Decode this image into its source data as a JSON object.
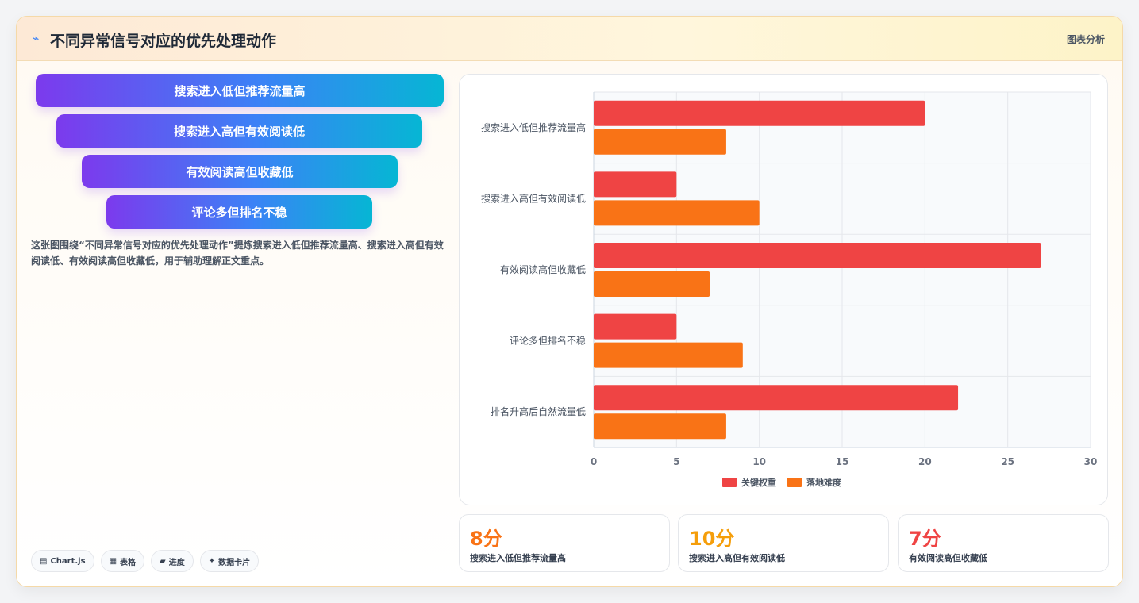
{
  "header": {
    "title_icon": "chart-icon",
    "title": "不同异常信号对应的优先处理动作",
    "tag": "图表分析"
  },
  "funnel": [
    "搜索进入低但推荐流量高",
    "搜索进入高但有效阅读低",
    "有效阅读高但收藏低",
    "评论多但排名不稳"
  ],
  "description": "这张图围绕“不同异常信号对应的优先处理动作”提炼搜索进入低但推荐流量高、搜索进入高但有效阅读低、有效阅读高但收藏低，用于辅助理解正文重点。",
  "pills": [
    {
      "icon": "▤",
      "label": "Chart.js"
    },
    {
      "icon": "▦",
      "label": "表格"
    },
    {
      "icon": "▰",
      "label": "进度"
    },
    {
      "icon": "✦",
      "label": "数据卡片"
    }
  ],
  "chart_data": {
    "type": "bar",
    "orientation": "horizontal",
    "categories": [
      "搜索进入低但推荐流量高",
      "搜索进入高但有效阅读低",
      "有效阅读高但收藏低",
      "评论多但排名不稳",
      "排名升高后自然流量低"
    ],
    "series": [
      {
        "name": "关键权重",
        "color": "#ef4444",
        "values": [
          20,
          5,
          27,
          5,
          22
        ]
      },
      {
        "name": "落地难度",
        "color": "#f97316",
        "values": [
          8,
          10,
          7,
          9,
          8
        ]
      }
    ],
    "xlim": [
      0,
      30
    ],
    "xticks": [
      0,
      5,
      10,
      15,
      20,
      25,
      30
    ],
    "grid": true,
    "legend_position": "bottom"
  },
  "stats": [
    {
      "value": "8分",
      "label": "搜索进入低但推荐流量高",
      "color": "#f97316"
    },
    {
      "value": "10分",
      "label": "搜索进入高但有效阅读低",
      "color": "#f59e0b"
    },
    {
      "value": "7分",
      "label": "有效阅读高但收藏低",
      "color": "#ef4444"
    }
  ]
}
